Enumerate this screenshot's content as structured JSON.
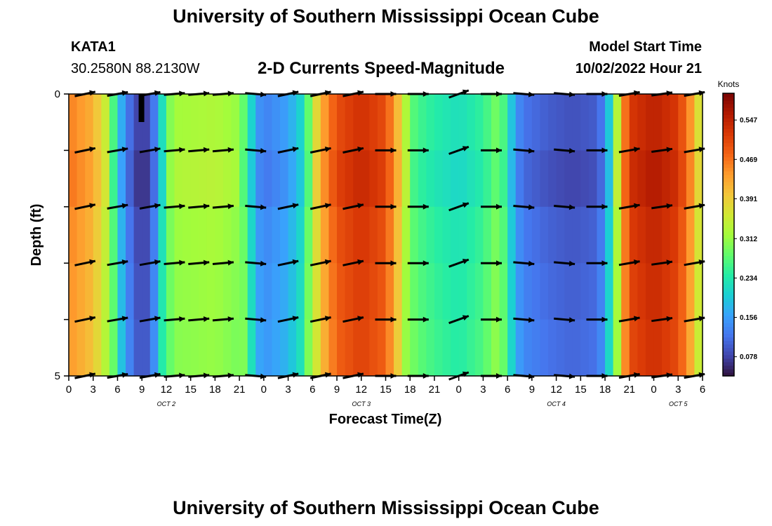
{
  "page": {
    "title": "University of Southern Mississippi Ocean Cube",
    "footer_title": "University of Southern Mississippi Ocean Cube",
    "station": "KATA1",
    "coords": "30.2580N  88.2130W",
    "subtitle": "2-D Currents Speed-Magnitude",
    "model_start_label": "Model Start Time",
    "model_start_value": "10/02/2022 Hour 21"
  },
  "chart_data": {
    "type": "heatmap",
    "title": "2-D Currents Speed-Magnitude",
    "xlabel": "Forecast Time(Z)",
    "ylabel": "Depth (ft)",
    "xlim": [
      0,
      78
    ],
    "ylim": [
      0,
      5
    ],
    "y_ticks": [
      "0",
      "5"
    ],
    "x_tick_labels": [
      "0",
      "3",
      "6",
      "9",
      "12",
      "15",
      "18",
      "21",
      "0",
      "3",
      "6",
      "9",
      "12",
      "15",
      "18",
      "21",
      "0",
      "3",
      "6",
      "9",
      "12",
      "15",
      "18",
      "21",
      "0",
      "3",
      "6"
    ],
    "date_labels": [
      {
        "label": "OCT 2",
        "hour": 12
      },
      {
        "label": "OCT 3",
        "hour": 36
      },
      {
        "label": "OCT 4",
        "hour": 60
      },
      {
        "label": "OCT 5",
        "hour": 75
      }
    ],
    "colorbar": {
      "title": "Knots",
      "min": 0.04,
      "max": 0.6,
      "ticks": [
        0.078,
        0.156,
        0.234,
        0.312,
        0.391,
        0.469,
        0.547
      ],
      "colors": [
        "#30123b",
        "#4145ab",
        "#4675ed",
        "#39a2fc",
        "#1bcfd4",
        "#24eca6",
        "#61fc6c",
        "#a4fc3b",
        "#d1e834",
        "#f3c63a",
        "#fe9b2d",
        "#f36315",
        "#d93806",
        "#b11901",
        "#7a0403"
      ]
    },
    "speed_by_hour": [
      [
        0,
        0.46
      ],
      [
        3,
        0.42
      ],
      [
        5,
        0.33
      ],
      [
        6,
        0.2
      ],
      [
        7,
        0.14
      ],
      [
        8,
        0.09
      ],
      [
        9,
        0.07
      ],
      [
        10,
        0.09
      ],
      [
        11,
        0.16
      ],
      [
        12,
        0.28
      ],
      [
        13,
        0.32
      ],
      [
        18,
        0.33
      ],
      [
        21,
        0.31
      ],
      [
        22,
        0.25
      ],
      [
        23,
        0.16
      ],
      [
        24,
        0.13
      ],
      [
        27,
        0.16
      ],
      [
        29,
        0.22
      ],
      [
        30,
        0.34
      ],
      [
        31,
        0.42
      ],
      [
        33,
        0.5
      ],
      [
        36,
        0.53
      ],
      [
        39,
        0.5
      ],
      [
        40,
        0.44
      ],
      [
        41,
        0.38
      ],
      [
        42,
        0.28
      ],
      [
        43,
        0.26
      ],
      [
        45,
        0.24
      ],
      [
        48,
        0.22
      ],
      [
        51,
        0.25
      ],
      [
        53,
        0.3
      ],
      [
        54,
        0.23
      ],
      [
        55,
        0.15
      ],
      [
        56,
        0.12
      ],
      [
        59,
        0.1
      ],
      [
        62,
        0.09
      ],
      [
        65,
        0.1
      ],
      [
        66,
        0.14
      ],
      [
        67,
        0.25
      ],
      [
        68,
        0.42
      ],
      [
        69,
        0.52
      ],
      [
        72,
        0.55
      ],
      [
        75,
        0.52
      ],
      [
        77,
        0.42
      ],
      [
        78,
        0.32
      ]
    ],
    "vector_times": [
      2,
      6,
      10,
      13,
      16,
      19,
      23,
      27,
      31,
      35,
      39,
      43,
      48,
      52,
      56,
      61,
      65,
      69,
      73,
      77
    ],
    "vector_depths": [
      0,
      1,
      2,
      3,
      4,
      5
    ],
    "vector_angles_deg": [
      -12,
      -10,
      -10,
      -5,
      -5,
      -5,
      5,
      -12,
      -12,
      -12,
      0,
      0,
      -20,
      0,
      5,
      5,
      0,
      -10,
      -8,
      -10
    ]
  }
}
